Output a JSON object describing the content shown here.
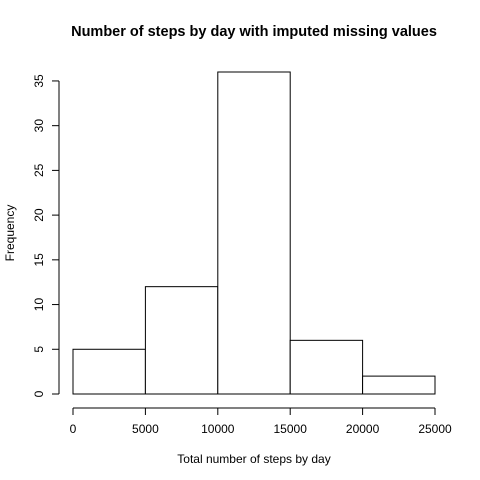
{
  "chart_data": {
    "type": "bar",
    "title": "Number of steps by day with imputed missing values",
    "xlabel": "Total number of steps by day",
    "ylabel": "Frequency",
    "bins": [
      {
        "from": 0,
        "to": 5000,
        "count": 5
      },
      {
        "from": 5000,
        "to": 10000,
        "count": 12
      },
      {
        "from": 10000,
        "to": 15000,
        "count": 36
      },
      {
        "from": 15000,
        "to": 20000,
        "count": 6
      },
      {
        "from": 20000,
        "to": 25000,
        "count": 2
      }
    ],
    "xticks": [
      0,
      5000,
      10000,
      15000,
      20000,
      25000
    ],
    "xtick_labels": [
      "0",
      "5000",
      "10000",
      "15000",
      "20000",
      "25000"
    ],
    "yticks": [
      0,
      5,
      10,
      15,
      20,
      25,
      30,
      35
    ],
    "ytick_labels": [
      "0",
      "5",
      "10",
      "15",
      "20",
      "25",
      "30",
      "35"
    ],
    "xlim": [
      0,
      25000
    ],
    "ylim": [
      0,
      36
    ],
    "grid": false,
    "legend": "none",
    "bar_fill": "#ffffff",
    "bar_stroke": "#000000"
  }
}
